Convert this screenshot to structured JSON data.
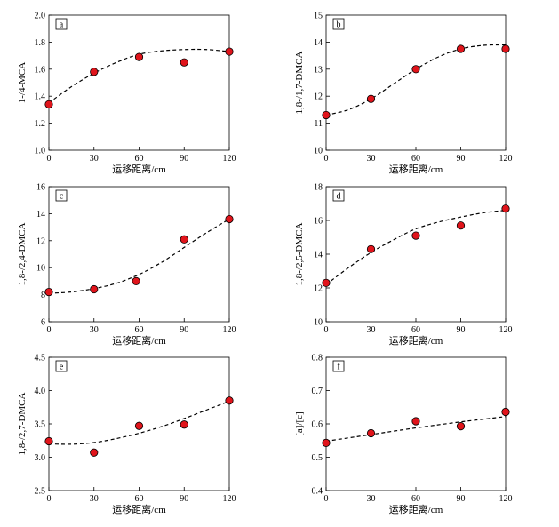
{
  "colors": {
    "marker_fill": "#e0141b",
    "marker_stroke": "#000000",
    "curve": "#000000",
    "axis": "#000000"
  },
  "chart_data": [
    {
      "type": "scatter",
      "panel_label": "a",
      "ylabel": "1-/4-MCA",
      "xlabel": "运移距离/cm",
      "xlim": [
        0,
        120
      ],
      "ylim": [
        1.0,
        2.0
      ],
      "xticks": [
        "0",
        "30",
        "60",
        "90",
        "120"
      ],
      "yticks": [
        "1.0",
        "1.2",
        "1.4",
        "1.6",
        "1.8",
        "2.0"
      ],
      "series": [
        {
          "x": [
            0,
            30,
            60,
            90,
            120
          ],
          "y": [
            1.34,
            1.58,
            1.69,
            1.65,
            1.73
          ]
        }
      ],
      "trend": {
        "style": "dashed",
        "x": [
          0,
          15,
          30,
          45,
          60,
          75,
          90,
          105,
          120
        ],
        "y": [
          1.35,
          1.47,
          1.57,
          1.65,
          1.71,
          1.735,
          1.745,
          1.745,
          1.73
        ]
      }
    },
    {
      "type": "scatter",
      "panel_label": "b",
      "ylabel": "1,8-/1,7-DMCA",
      "xlabel": "运移距离/cm",
      "xlim": [
        0,
        120
      ],
      "ylim": [
        10,
        15
      ],
      "xticks": [
        "0",
        "30",
        "60",
        "90",
        "120"
      ],
      "yticks": [
        "10",
        "11",
        "12",
        "13",
        "14",
        "15"
      ],
      "series": [
        {
          "x": [
            0,
            30,
            60,
            90,
            120
          ],
          "y": [
            11.3,
            11.9,
            13.0,
            13.75,
            13.75
          ]
        }
      ],
      "trend": {
        "style": "dashed",
        "x": [
          0,
          15,
          30,
          45,
          60,
          75,
          90,
          105,
          120
        ],
        "y": [
          11.3,
          11.5,
          11.9,
          12.45,
          13.0,
          13.45,
          13.75,
          13.88,
          13.9
        ]
      }
    },
    {
      "type": "scatter",
      "panel_label": "c",
      "ylabel": "1,8-/2,4-DMCA",
      "xlabel": "运移距离/cm",
      "xlim": [
        0,
        120
      ],
      "ylim": [
        6,
        16
      ],
      "xticks": [
        "0",
        "30",
        "60",
        "90",
        "120"
      ],
      "yticks": [
        "6",
        "8",
        "10",
        "12",
        "14",
        "16"
      ],
      "series": [
        {
          "x": [
            0,
            30,
            58,
            90,
            120
          ],
          "y": [
            8.2,
            8.4,
            9.0,
            12.1,
            13.6
          ]
        }
      ],
      "trend": {
        "style": "dashed",
        "x": [
          0,
          15,
          30,
          45,
          60,
          75,
          90,
          105,
          120
        ],
        "y": [
          8.1,
          8.2,
          8.45,
          8.85,
          9.5,
          10.4,
          11.5,
          12.6,
          13.6
        ]
      }
    },
    {
      "type": "scatter",
      "panel_label": "d",
      "ylabel": "1,8-/2,5-DMCA",
      "xlabel": "运移距离/cm",
      "xlim": [
        0,
        120
      ],
      "ylim": [
        10,
        18
      ],
      "xticks": [
        "0",
        "30",
        "60",
        "90",
        "120"
      ],
      "yticks": [
        "10",
        "12",
        "14",
        "16",
        "18"
      ],
      "series": [
        {
          "x": [
            0,
            30,
            60,
            90,
            120
          ],
          "y": [
            12.3,
            14.3,
            15.1,
            15.7,
            16.7
          ]
        }
      ],
      "trend": {
        "style": "dashed",
        "x": [
          0,
          15,
          30,
          45,
          60,
          75,
          90,
          105,
          120
        ],
        "y": [
          12.2,
          13.2,
          14.1,
          14.85,
          15.5,
          15.9,
          16.2,
          16.45,
          16.6
        ]
      }
    },
    {
      "type": "scatter",
      "panel_label": "e",
      "ylabel": "1,8-/2,7-DMCA",
      "xlabel": "运移距离/cm",
      "xlim": [
        0,
        120
      ],
      "ylim": [
        2.5,
        4.5
      ],
      "xticks": [
        "0",
        "30",
        "60",
        "90",
        "120"
      ],
      "yticks": [
        "2.5",
        "3.0",
        "3.5",
        "4.0",
        "4.5"
      ],
      "series": [
        {
          "x": [
            0,
            30,
            60,
            90,
            120
          ],
          "y": [
            3.24,
            3.07,
            3.47,
            3.49,
            3.85
          ]
        }
      ],
      "trend": {
        "style": "dashed",
        "x": [
          0,
          15,
          30,
          45,
          60,
          75,
          90,
          105,
          120
        ],
        "y": [
          3.2,
          3.195,
          3.22,
          3.28,
          3.36,
          3.46,
          3.58,
          3.71,
          3.84
        ]
      }
    },
    {
      "type": "scatter",
      "panel_label": "f",
      "ylabel": "[a]/[c]",
      "xlabel": "运移距离/cm",
      "xlim": [
        0,
        120
      ],
      "ylim": [
        0.4,
        0.8
      ],
      "xticks": [
        "0",
        "30",
        "60",
        "90",
        "120"
      ],
      "yticks": [
        "0.4",
        "0.5",
        "0.6",
        "0.7",
        "0.8"
      ],
      "series": [
        {
          "x": [
            0,
            30,
            60,
            90,
            120
          ],
          "y": [
            0.543,
            0.572,
            0.608,
            0.593,
            0.636
          ]
        }
      ],
      "trend": {
        "style": "dashed",
        "x": [
          0,
          30,
          60,
          90,
          120
        ],
        "y": [
          0.548,
          0.568,
          0.588,
          0.606,
          0.622
        ]
      }
    }
  ]
}
